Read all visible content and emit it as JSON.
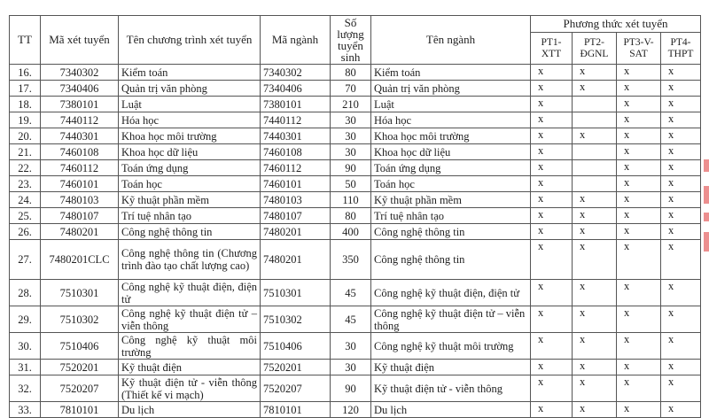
{
  "header": {
    "tt": "TT",
    "ma_xet_tuyen": "Mã xét tuyển",
    "ten_chuong_trinh": "Tên chương trình xét tuyển",
    "ma_nganh": "Mã ngành",
    "so_luong": "Số lượng tuyển sinh",
    "ten_nganh": "Tên ngành",
    "phuong_thuc": "Phương thức xét tuyển",
    "methods": [
      "PT1-XTT",
      "PT2-ĐGNL",
      "PT3-V-SAT",
      "PT4-THPT"
    ]
  },
  "rows": [
    {
      "tt": "16.",
      "code": "7340302",
      "program": "Kiểm toán",
      "major_code": "7340302",
      "quota": "80",
      "major": "Kiểm toán",
      "pt": [
        "x",
        "x",
        "x",
        "x"
      ]
    },
    {
      "tt": "17.",
      "code": "7340406",
      "program": "Quản trị văn phòng",
      "major_code": "7340406",
      "quota": "70",
      "major": "Quản trị văn phòng",
      "pt": [
        "x",
        "x",
        "x",
        "x"
      ]
    },
    {
      "tt": "18.",
      "code": "7380101",
      "program": "Luật",
      "major_code": "7380101",
      "quota": "210",
      "major": "Luật",
      "pt": [
        "x",
        "",
        "x",
        "x"
      ]
    },
    {
      "tt": "19.",
      "code": "7440112",
      "program": "Hóa học",
      "major_code": "7440112",
      "quota": "30",
      "major": "Hóa học",
      "pt": [
        "x",
        "",
        "x",
        "x"
      ]
    },
    {
      "tt": "20.",
      "code": "7440301",
      "program": "Khoa học môi trường",
      "major_code": "7440301",
      "quota": "30",
      "major": "Khoa học môi trường",
      "pt": [
        "x",
        "x",
        "x",
        "x"
      ]
    },
    {
      "tt": "21.",
      "code": "7460108",
      "program": "Khoa học dữ liệu",
      "major_code": "7460108",
      "quota": "30",
      "major": "Khoa học dữ liệu",
      "pt": [
        "x",
        "",
        "x",
        "x"
      ]
    },
    {
      "tt": "22.",
      "code": "7460112",
      "program": "Toán ứng dụng",
      "major_code": "7460112",
      "quota": "90",
      "major": "Toán ứng dụng",
      "pt": [
        "x",
        "",
        "x",
        "x"
      ]
    },
    {
      "tt": "23.",
      "code": "7460101",
      "program": "Toán học",
      "major_code": "7460101",
      "quota": "50",
      "major": "Toán học",
      "pt": [
        "x",
        "",
        "x",
        "x"
      ]
    },
    {
      "tt": "24.",
      "code": "7480103",
      "program": "Kỹ thuật phần mềm",
      "major_code": "7480103",
      "quota": "110",
      "major": "Kỹ thuật phần mềm",
      "pt": [
        "x",
        "x",
        "x",
        "x"
      ]
    },
    {
      "tt": "25.",
      "code": "7480107",
      "program": "Trí tuệ nhân tạo",
      "major_code": "7480107",
      "quota": "80",
      "major": "Trí tuệ nhân tạo",
      "pt": [
        "x",
        "x",
        "x",
        "x"
      ]
    },
    {
      "tt": "26.",
      "code": "7480201",
      "program": "Công nghệ thông tin",
      "major_code": "7480201",
      "quota": "400",
      "major": "Công nghệ thông tin",
      "pt": [
        "x",
        "x",
        "x",
        "x"
      ]
    },
    {
      "tt": "27.",
      "code": "7480201CLC",
      "program": "Công nghệ thông tin (Chương trình đào tạo chất lượng cao)",
      "major_code": "7480201",
      "quota": "350",
      "major": "Công nghệ thông tin",
      "pt": [
        "x",
        "x",
        "x",
        "x"
      ]
    },
    {
      "tt": "28.",
      "code": "7510301",
      "program": "Công nghệ kỹ thuật điện, điện tử",
      "major_code": "7510301",
      "quota": "45",
      "major": "Công nghệ kỹ thuật điện, điện tử",
      "pt": [
        "x",
        "x",
        "x",
        "x"
      ]
    },
    {
      "tt": "29.",
      "code": "7510302",
      "program": "Công nghệ kỹ thuật điện tử – viễn thông",
      "major_code": "7510302",
      "quota": "45",
      "major": "Công nghệ kỹ thuật điện tử – viễn thông",
      "pt": [
        "x",
        "x",
        "x",
        "x"
      ]
    },
    {
      "tt": "30.",
      "code": "7510406",
      "program": "Công nghệ kỹ thuật môi trường",
      "major_code": "7510406",
      "quota": "30",
      "major": "Công nghệ kỹ thuật môi trường",
      "pt": [
        "x",
        "x",
        "x",
        "x"
      ]
    },
    {
      "tt": "31.",
      "code": "7520201",
      "program": "Kỹ thuật điện",
      "major_code": "7520201",
      "quota": "30",
      "major": "Kỹ thuật điện",
      "pt": [
        "x",
        "x",
        "x",
        "x"
      ]
    },
    {
      "tt": "32.",
      "code": "7520207",
      "program": "Kỹ thuật điện tử - viễn thông (Thiết kế vi mạch)",
      "major_code": "7520207",
      "quota": "90",
      "major": "Kỹ thuật điện tử - viễn thông",
      "pt": [
        "x",
        "x",
        "x",
        "x"
      ]
    },
    {
      "tt": "33.",
      "code": "7810101",
      "program": "Du lịch",
      "major_code": "7810101",
      "quota": "120",
      "major": "Du lịch",
      "pt": [
        "x",
        "x",
        "x",
        "x"
      ]
    }
  ]
}
